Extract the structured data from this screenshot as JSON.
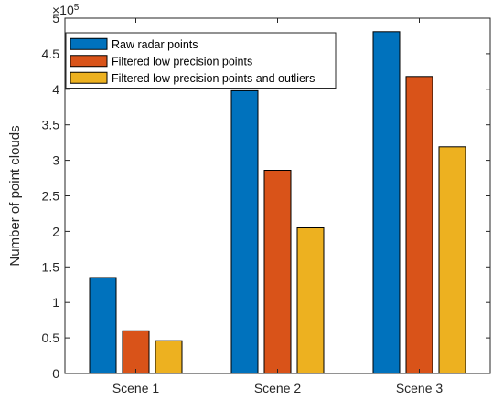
{
  "chart_data": {
    "type": "bar",
    "categories": [
      "Scene 1",
      "Scene 2",
      "Scene 3"
    ],
    "series": [
      {
        "name": "Raw radar points",
        "color": "#0072BD",
        "values": [
          1.35,
          3.98,
          4.81
        ]
      },
      {
        "name": "Filtered low precision points",
        "color": "#D95319",
        "values": [
          0.6,
          2.86,
          4.18
        ]
      },
      {
        "name": "Filtered low precision points and outliers",
        "color": "#EDB120",
        "values": [
          0.46,
          2.05,
          3.19
        ]
      }
    ],
    "title": "",
    "xlabel": "",
    "ylabel": "Number of point clouds",
    "ylim": [
      0,
      5
    ],
    "yticks": [
      0,
      0.5,
      1,
      1.5,
      2,
      2.5,
      3,
      3.5,
      4,
      4.5,
      5
    ],
    "ytick_labels": [
      "0",
      "0.5",
      "1",
      "1.5",
      "2",
      "2.5",
      "3",
      "3.5",
      "4",
      "4.5",
      "5"
    ],
    "y_exponent_base": "×10",
    "y_exponent_power": "5",
    "grid": false,
    "legend_position": "top-left"
  }
}
